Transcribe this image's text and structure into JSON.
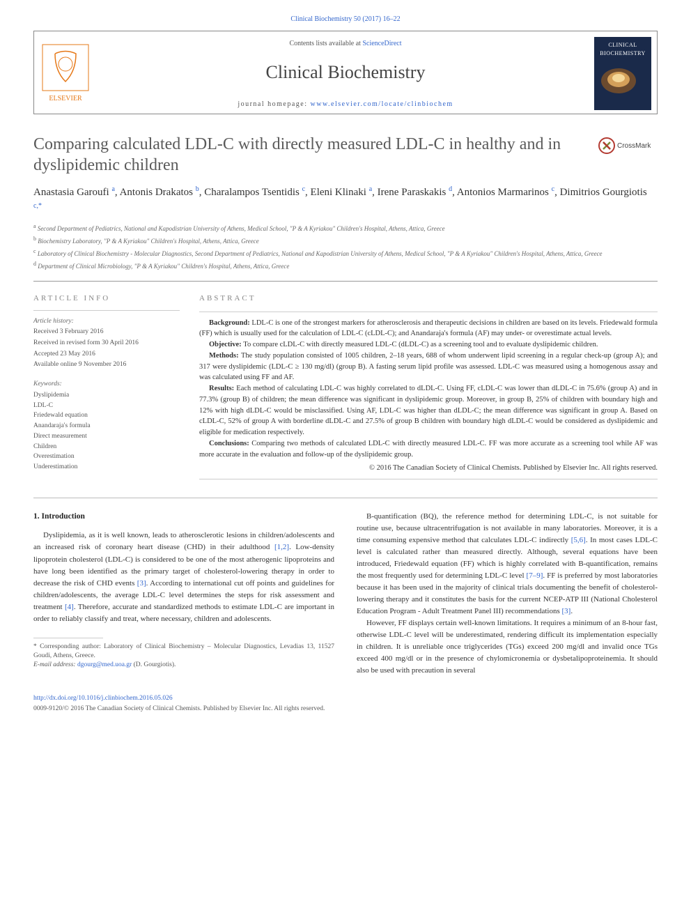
{
  "top_link": "Clinical Biochemistry 50 (2017) 16–22",
  "header": {
    "contents_prefix": "Contents lists available at ",
    "contents_link": "ScienceDirect",
    "journal_name": "Clinical Biochemistry",
    "homepage_prefix": "journal homepage: ",
    "homepage_link": "www.elsevier.com/locate/clinbiochem",
    "cover_text": "CLINICAL BIOCHEMISTRY"
  },
  "article": {
    "title": "Comparing calculated LDL-C with directly measured LDL-C in healthy and in dyslipidemic children",
    "crossmark_label": "CrossMark",
    "authors_html": "Anastasia Garoufi <sup>a</sup>, Antonis Drakatos <sup>b</sup>, Charalampos Tsentidis <sup>c</sup>, Eleni Klinaki <sup>a</sup>, Irene Paraskakis <sup>d</sup>, Antonios Marmarinos <sup>c</sup>, Dimitrios Gourgiotis <sup>c,*</sup>",
    "affiliations": [
      {
        "sup": "a",
        "text": "Second Department of Pediatrics, National and Kapodistrian University of Athens, Medical School, \"P & A Kyriakou\" Children's Hospital, Athens, Attica, Greece"
      },
      {
        "sup": "b",
        "text": "Biochemistry Laboratory, \"P & A Kyriakou\" Children's Hospital, Athens, Attica, Greece"
      },
      {
        "sup": "c",
        "text": "Laboratory of Clinical Biochemistry - Molecular Diagnostics, Second Department of Pediatrics, National and Kapodistrian University of Athens, Medical School, \"P & A Kyriakou\" Children's Hospital, Athens, Attica, Greece"
      },
      {
        "sup": "d",
        "text": "Department of Clinical Microbiology, \"P & A Kyriakou\" Children's Hospital, Athens, Attica, Greece"
      }
    ]
  },
  "info": {
    "heading": "ARTICLE INFO",
    "history_label": "Article history:",
    "history": [
      "Received 3 February 2016",
      "Received in revised form 30 April 2016",
      "Accepted 23 May 2016",
      "Available online 9 November 2016"
    ],
    "keywords_label": "Keywords:",
    "keywords": [
      "Dyslipidemia",
      "LDL-C",
      "Friedewald equation",
      "Anandaraja's formula",
      "Direct measurement",
      "Children",
      "Overestimation",
      "Underestimation"
    ]
  },
  "abstract": {
    "heading": "ABSTRACT",
    "paragraphs": [
      {
        "label": "Background:",
        "text": "LDL-C is one of the strongest markers for atherosclerosis and therapeutic decisions in children are based on its levels. Friedewald formula (FF) which is usually used for the calculation of LDL-C (cLDL-C); and Anandaraja's formula (AF) may under- or overestimate actual levels."
      },
      {
        "label": "Objective:",
        "text": "To compare cLDL-C with directly measured LDL-C (dLDL-C) as a screening tool and to evaluate dyslipidemic children."
      },
      {
        "label": "Methods:",
        "text": "The study population consisted of 1005 children, 2–18 years, 688 of whom underwent lipid screening in a regular check-up (group A); and 317 were dyslipidemic (LDL-C ≥ 130 mg/dl) (group B). A fasting serum lipid profile was assessed. LDL-C was measured using a homogenous assay and was calculated using FF and AF."
      },
      {
        "label": "Results:",
        "text": "Each method of calculating LDL-C was highly correlated to dLDL-C. Using FF, cLDL-C was lower than dLDL-C in 75.6% (group A) and in 77.3% (group B) of children; the mean difference was significant in dyslipidemic group. Moreover, in group B, 25% of children with boundary high and 12% with high dLDL-C would be misclassified. Using AF, LDL-C was higher than dLDL-C; the mean difference was significant in group A. Based on cLDL-C, 52% of group A with borderline dLDL-C and 27.5% of group B children with boundary high dLDL-C would be considered as dyslipidemic and eligible for medication respectively."
      },
      {
        "label": "Conclusions:",
        "text": "Comparing two methods of calculated LDL-C with directly measured LDL-C. FF was more accurate as a screening tool while AF was more accurate in the evaluation and follow-up of the dyslipidemic group."
      }
    ],
    "copyright": "© 2016 The Canadian Society of Clinical Chemists. Published by Elsevier Inc. All rights reserved."
  },
  "body": {
    "section_heading": "1. Introduction",
    "p1": "Dyslipidemia, as it is well known, leads to atherosclerotic lesions in children/adolescents and an increased risk of coronary heart disease (CHD) in their adulthood ",
    "r1": "[1,2]",
    "p1b": ". Low-density lipoprotein cholesterol (LDL-C) is considered to be one of the most atherogenic lipoproteins and have long been identified as the primary target of cholesterol-lowering therapy in order to decrease the risk of CHD events ",
    "r2": "[3]",
    "p1c": ". According to international cut off points and guidelines for children/adolescents, the average LDL-C level determines the steps for risk assessment and treatment ",
    "r3": "[4]",
    "p1d": ". Therefore, accurate and standardized methods to estimate LDL-C are important in order to reliably classify and treat, where necessary, children and adolescents.",
    "p2a": "B-quantification (BQ), the reference method for determining LDL-C, is not suitable for routine use, because ultracentrifugation is not available in many laboratories. Moreover, it is a time consuming expensive method that calculates LDL-C indirectly ",
    "r4": "[5,6]",
    "p2b": ". In most cases LDL-C level is calculated rather than measured directly. Although, several equations have been introduced, Friedewald equation (FF) which is highly correlated with B-quantification, remains the most frequently used for determining LDL-C level ",
    "r5": "[7–9]",
    "p2c": ". FF is preferred by most laboratories because it has been used in the majority of clinical trials documenting the benefit of cholesterol-lowering therapy and it constitutes the basis for the current NCEP-ATP III (National Cholesterol Education Program - Adult Treatment Panel III) recommendations ",
    "r6": "[3]",
    "p2d": ".",
    "p3": "However, FF displays certain well-known limitations. It requires a minimum of an 8-hour fast, otherwise LDL-C level will be underestimated, rendering difficult its implementation especially in children. It is unreliable once triglycerides (TGs) exceed 200 mg/dl and invalid once TGs exceed 400 mg/dl or in the presence of chylomicronemia or dysbetalipoproteinemia. It should also be used with precaution in several"
  },
  "footnote": {
    "corr_prefix": "* Corresponding author: Laboratory of Clinical Biochemistry – Molecular Diagnostics, Levadias 13, 11527 Goudi, Athens, Greece.",
    "email_label": "E-mail address: ",
    "email": "dgourg@med.uoa.gr",
    "email_suffix": " (D. Gourgiotis)."
  },
  "bottom": {
    "doi": "http://dx.doi.org/10.1016/j.clinbiochem.2016.05.026",
    "copy": "0009-9120/© 2016 The Canadian Society of Clinical Chemists. Published by Elsevier Inc. All rights reserved."
  },
  "colors": {
    "link": "#3366cc",
    "text": "#333333",
    "heading_gray": "#888888",
    "cover_bg": "#1a2a4a"
  }
}
